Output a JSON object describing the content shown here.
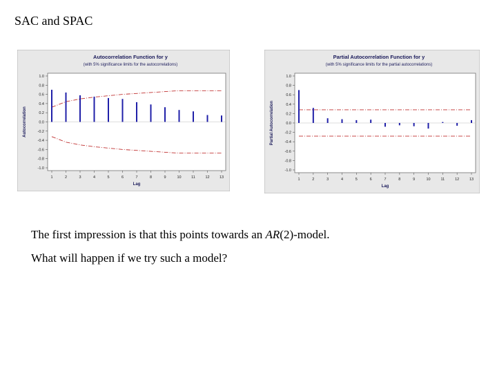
{
  "slide": {
    "title": "SAC and SPAC",
    "line1_pre": "The first impression is that this points towards an ",
    "line1_italic": "AR",
    "line1_post": "(2)-model.",
    "line2": "What will happen if we try such a model?"
  },
  "chart_data": [
    {
      "type": "bar",
      "title": "Autocorrelation Function for y",
      "subtitle": "(with 5% significance limits for the autocorrelations)",
      "xlabel": "Lag",
      "ylabel": "Autocorrelation",
      "categories": [
        "1",
        "2",
        "3",
        "4",
        "5",
        "6",
        "7",
        "8",
        "9",
        "10",
        "11",
        "12",
        "13"
      ],
      "values": [
        0.7,
        0.64,
        0.58,
        0.55,
        0.52,
        0.5,
        0.43,
        0.38,
        0.32,
        0.26,
        0.23,
        0.15,
        0.14
      ],
      "limit_upper": [
        0.32,
        0.44,
        0.5,
        0.54,
        0.57,
        0.6,
        0.62,
        0.64,
        0.66,
        0.68,
        0.68,
        0.68,
        0.68
      ],
      "limit_lower": [
        -0.32,
        -0.44,
        -0.5,
        -0.54,
        -0.57,
        -0.6,
        -0.62,
        -0.64,
        -0.66,
        -0.68,
        -0.68,
        -0.68,
        -0.68
      ],
      "ylim": [
        -1.0,
        1.0
      ],
      "yticks": [
        "1.0",
        "0.8",
        "0.6",
        "0.4",
        "0.2",
        "0.0",
        "-0.2",
        "-0.4",
        "-0.6",
        "-0.8",
        "-1.0"
      ],
      "grid": false,
      "colors": {
        "bar": "#1f1fa8",
        "limit": "#c03030",
        "frame_bg": "#e8e8e8",
        "plot_bg": "#ffffff"
      }
    },
    {
      "type": "bar",
      "title": "Partial Autocorrelation Function for y",
      "subtitle": "(with 5% significance limits for the partial autocorrelations)",
      "xlabel": "Lag",
      "ylabel": "Partial Autocorrelation",
      "categories": [
        "1",
        "2",
        "3",
        "4",
        "5",
        "6",
        "7",
        "8",
        "9",
        "10",
        "11",
        "12",
        "13"
      ],
      "values": [
        0.7,
        0.32,
        0.1,
        0.08,
        0.06,
        0.07,
        -0.08,
        -0.05,
        -0.07,
        -0.12,
        0.02,
        -0.06,
        0.06
      ],
      "limit_upper": [
        0.28,
        0.28,
        0.28,
        0.28,
        0.28,
        0.28,
        0.28,
        0.28,
        0.28,
        0.28,
        0.28,
        0.28,
        0.28
      ],
      "limit_lower": [
        -0.28,
        -0.28,
        -0.28,
        -0.28,
        -0.28,
        -0.28,
        -0.28,
        -0.28,
        -0.28,
        -0.28,
        -0.28,
        -0.28,
        -0.28
      ],
      "ylim": [
        -1.0,
        1.0
      ],
      "yticks": [
        "1.0",
        "0.8",
        "0.6",
        "0.4",
        "0.2",
        "0.0",
        "-0.2",
        "-0.4",
        "-0.6",
        "-0.8",
        "-1.0"
      ],
      "grid": false,
      "colors": {
        "bar": "#1f1fa8",
        "limit": "#c03030",
        "frame_bg": "#e8e8e8",
        "plot_bg": "#ffffff"
      }
    }
  ]
}
